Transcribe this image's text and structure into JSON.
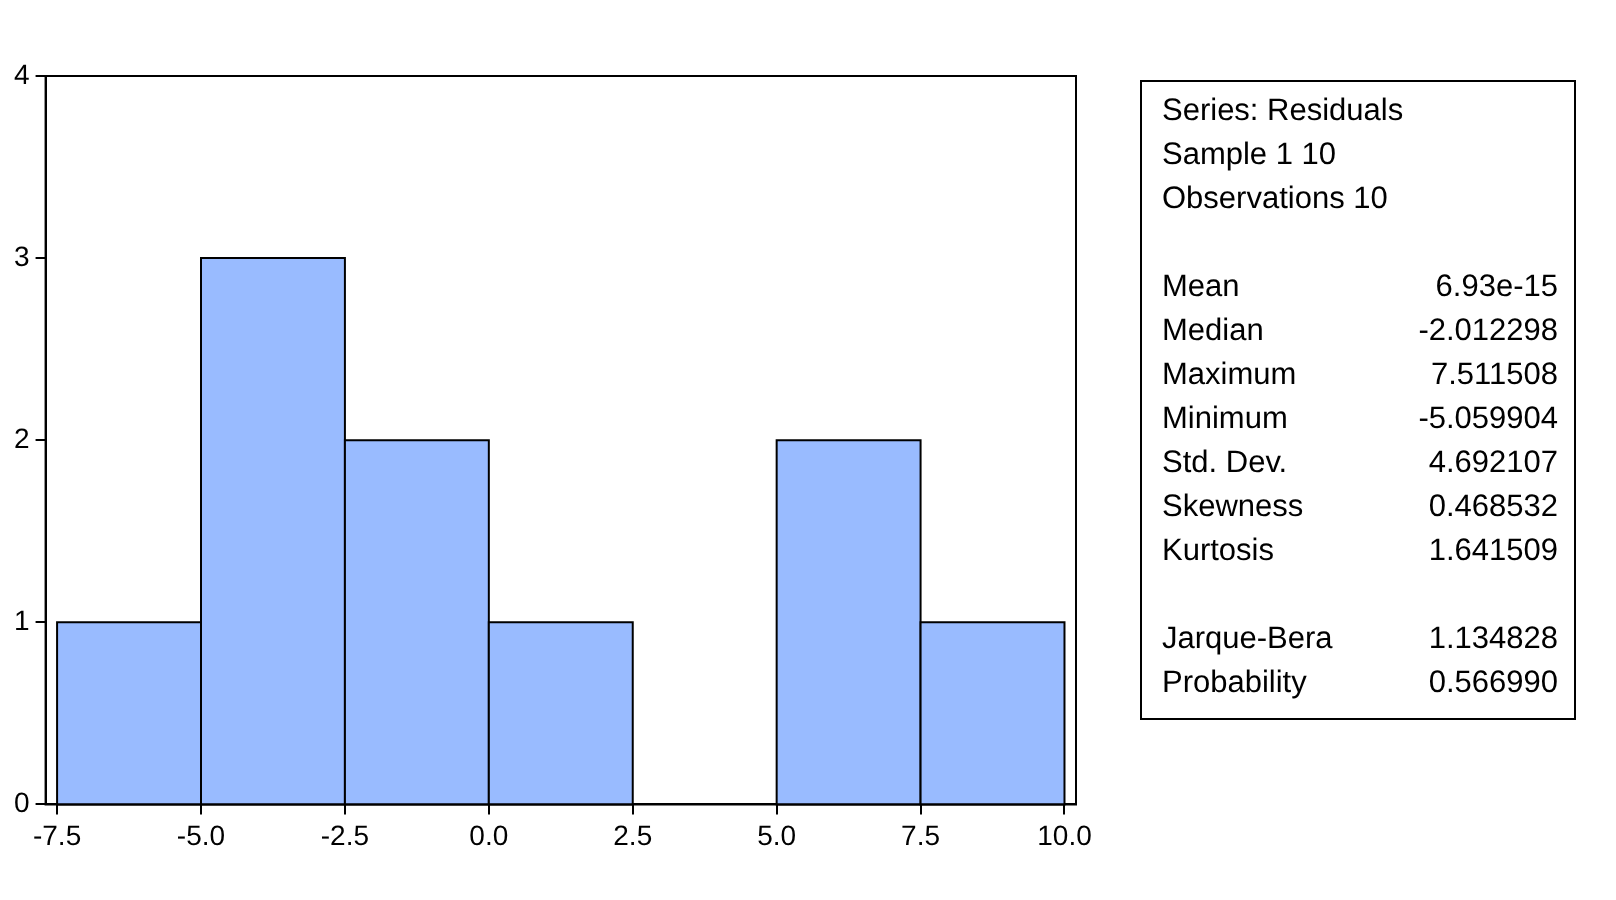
{
  "chart_data": {
    "type": "histogram",
    "bins": [
      -7.5,
      -5.0,
      -2.5,
      0.0,
      2.5,
      5.0,
      7.5,
      10.0
    ],
    "values": [
      1,
      3,
      2,
      1,
      0,
      2,
      1
    ],
    "color": "#99bbff",
    "xlim": [
      -7.7,
      10.2
    ],
    "xticks": [
      {
        "value": -7.5,
        "label": "-7.5"
      },
      {
        "value": -5,
        "label": "-5.0"
      },
      {
        "value": -2.5,
        "label": "-2.5"
      },
      {
        "value": 0,
        "label": "0.0"
      },
      {
        "value": 2.5,
        "label": "2.5"
      },
      {
        "value": 5,
        "label": "5.0"
      },
      {
        "value": 7.5,
        "label": "7.5"
      },
      {
        "value": 10,
        "label": "10.0"
      }
    ],
    "ylim": [
      0,
      4
    ],
    "yticks": [
      0,
      1,
      2,
      3,
      4
    ],
    "grid": false,
    "legend": false,
    "annotations": [
      "Series: Residuals",
      "Sample 1 10",
      "Observations 10",
      "Mean 6.93e-15",
      "Median -2.012298",
      "Maximum 7.511508",
      "Minimum -5.059904",
      "Std. Dev. 4.692107",
      "Skewness 0.468532",
      "Kurtosis 1.641509",
      "Jarque-Bera 1.134828",
      "Probability 0.566990"
    ]
  }
}
